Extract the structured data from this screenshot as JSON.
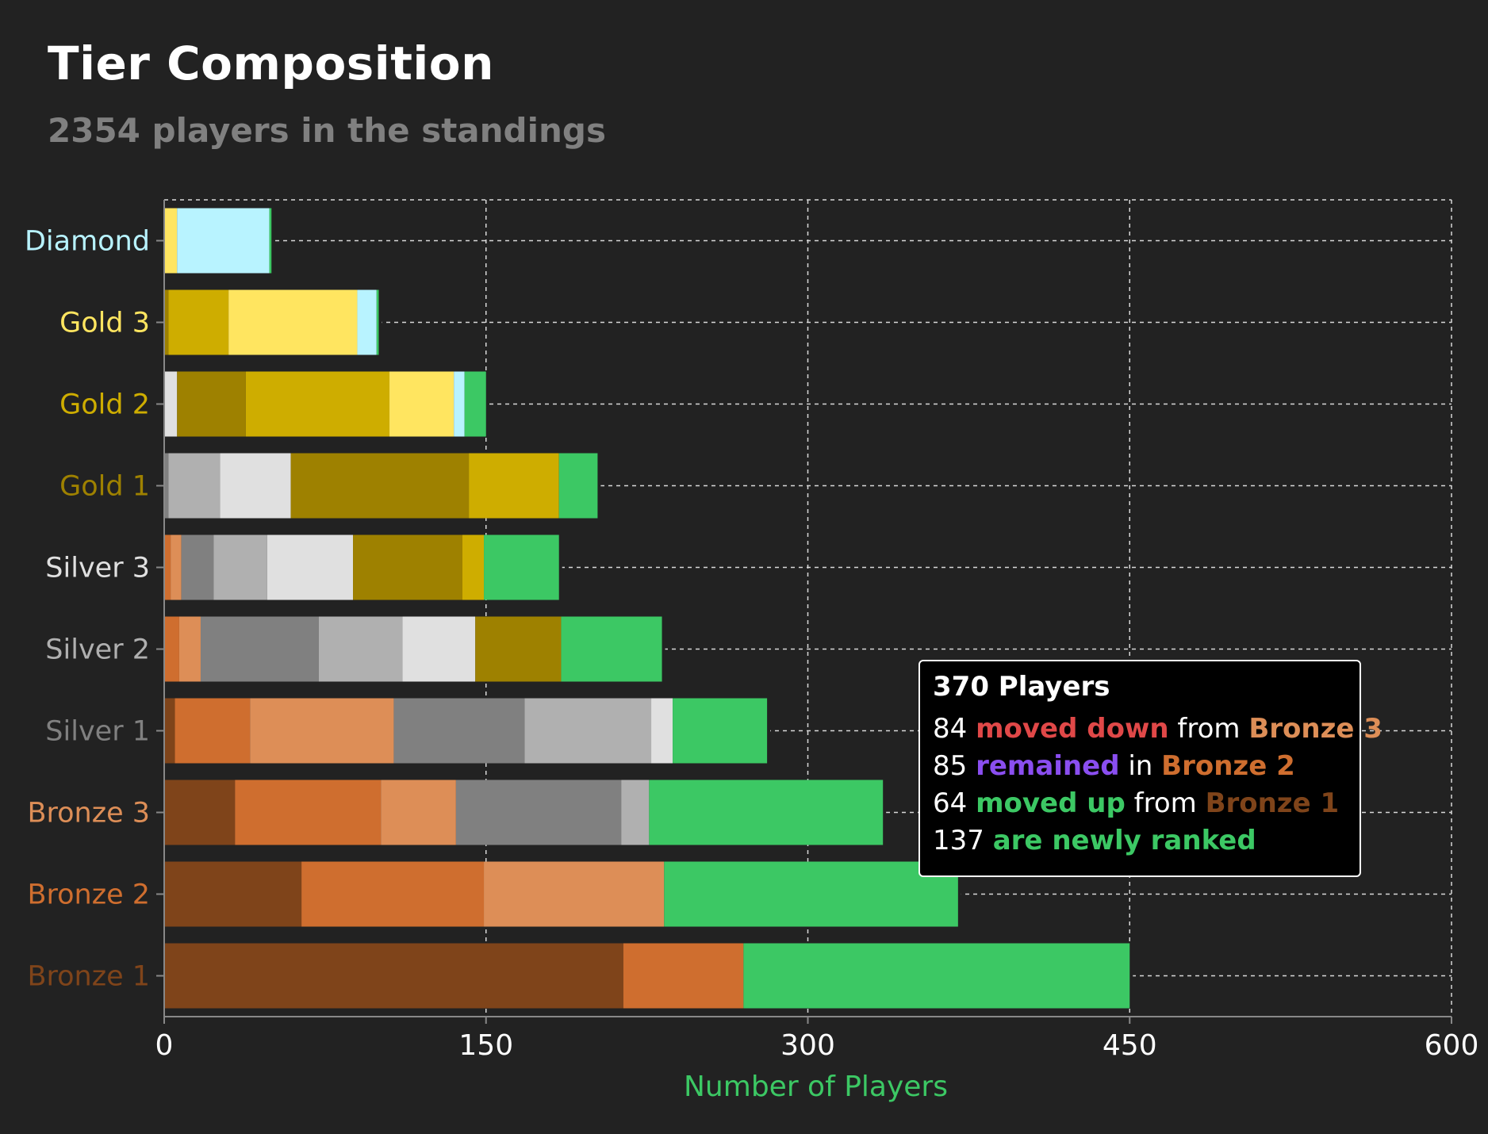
{
  "page": {
    "title": "Tier Composition",
    "subtitle": "2354 players in the standings"
  },
  "colors": {
    "background": "#222222",
    "grid": "#d8d8d8",
    "axis": "#888888",
    "new": "#3cc864",
    "bronze1": "#7f441a",
    "bronze2": "#cf6e2f",
    "bronze3": "#dd8e57",
    "silver1": "#808080",
    "silver2": "#b0b0b0",
    "silver3": "#e0e0e0",
    "gold1": "#9e8100",
    "gold2": "#cead00",
    "gold3": "#ffe560",
    "diamond": "#b8f3ff",
    "moved_down": "#e04848",
    "remained": "#8a4ef0",
    "moved_up": "#3cc864"
  },
  "tooltip": {
    "title": "370 Players",
    "line1": {
      "count": "84",
      "action": "moved down",
      "prep": "from",
      "tier": "Bronze 3"
    },
    "line2": {
      "count": "85",
      "action": "remained",
      "prep": "in",
      "tier": "Bronze 2"
    },
    "line3": {
      "count": "64",
      "action": "moved up",
      "prep": "from",
      "tier": "Bronze 1"
    },
    "line4": {
      "count": "137",
      "action": "are newly ranked"
    }
  },
  "chart_data": {
    "type": "bar",
    "orientation": "horizontal",
    "stacked": true,
    "xlabel": "Number of Players",
    "ylabel": "",
    "xlim": [
      0,
      600
    ],
    "xticks": [
      0,
      150,
      300,
      450,
      600
    ],
    "grid": true,
    "categories": [
      "Diamond",
      "Gold 3",
      "Gold 2",
      "Gold 1",
      "Silver 3",
      "Silver 2",
      "Silver 1",
      "Bronze 3",
      "Bronze 2",
      "Bronze 1"
    ],
    "category_colors": [
      "#b8f3ff",
      "#ffe560",
      "#cead00",
      "#9e8100",
      "#e0e0e0",
      "#b0b0b0",
      "#808080",
      "#dd8e57",
      "#cf6e2f",
      "#7f441a"
    ],
    "segment_groups": [
      "Bronze 1",
      "Bronze 2",
      "Bronze 3",
      "Silver 1",
      "Silver 2",
      "Silver 3",
      "Gold 1",
      "Gold 2",
      "Gold 3",
      "Diamond",
      "New"
    ],
    "bars": [
      {
        "category": "Diamond",
        "segments": [
          {
            "source": "Gold 3",
            "value": 6
          },
          {
            "source": "Diamond",
            "value": 43
          },
          {
            "source": "New",
            "value": 1
          }
        ]
      },
      {
        "category": "Gold 3",
        "segments": [
          {
            "source": "Gold 1",
            "value": 2
          },
          {
            "source": "Gold 2",
            "value": 28
          },
          {
            "source": "Gold 3",
            "value": 60
          },
          {
            "source": "Diamond",
            "value": 9
          },
          {
            "source": "New",
            "value": 1
          }
        ]
      },
      {
        "category": "Gold 2",
        "segments": [
          {
            "source": "Silver 3",
            "value": 6
          },
          {
            "source": "Gold 1",
            "value": 32
          },
          {
            "source": "Gold 2",
            "value": 67
          },
          {
            "source": "Gold 3",
            "value": 30
          },
          {
            "source": "Diamond",
            "value": 5
          },
          {
            "source": "New",
            "value": 10
          }
        ]
      },
      {
        "category": "Gold 1",
        "segments": [
          {
            "source": "Silver 1",
            "value": 2
          },
          {
            "source": "Silver 2",
            "value": 24
          },
          {
            "source": "Silver 3",
            "value": 33
          },
          {
            "source": "Gold 1",
            "value": 83
          },
          {
            "source": "Gold 2",
            "value": 42
          },
          {
            "source": "New",
            "value": 18
          }
        ]
      },
      {
        "category": "Silver 3",
        "segments": [
          {
            "source": "Bronze 2",
            "value": 3
          },
          {
            "source": "Bronze 3",
            "value": 5
          },
          {
            "source": "Silver 1",
            "value": 15
          },
          {
            "source": "Silver 2",
            "value": 25
          },
          {
            "source": "Silver 3",
            "value": 40
          },
          {
            "source": "Gold 1",
            "value": 51
          },
          {
            "source": "Gold 2",
            "value": 10
          },
          {
            "source": "New",
            "value": 35
          }
        ]
      },
      {
        "category": "Silver 2",
        "segments": [
          {
            "source": "Bronze 2",
            "value": 7
          },
          {
            "source": "Bronze 3",
            "value": 10
          },
          {
            "source": "Silver 1",
            "value": 55
          },
          {
            "source": "Silver 2",
            "value": 39
          },
          {
            "source": "Silver 3",
            "value": 34
          },
          {
            "source": "Gold 1",
            "value": 40
          },
          {
            "source": "New",
            "value": 47
          }
        ]
      },
      {
        "category": "Silver 1",
        "segments": [
          {
            "source": "Bronze 1",
            "value": 5
          },
          {
            "source": "Bronze 2",
            "value": 35
          },
          {
            "source": "Bronze 3",
            "value": 67
          },
          {
            "source": "Silver 1",
            "value": 61
          },
          {
            "source": "Silver 2",
            "value": 59
          },
          {
            "source": "Silver 3",
            "value": 10
          },
          {
            "source": "New",
            "value": 44
          }
        ]
      },
      {
        "category": "Bronze 3",
        "segments": [
          {
            "source": "Bronze 1",
            "value": 33
          },
          {
            "source": "Bronze 2",
            "value": 68
          },
          {
            "source": "Bronze 3",
            "value": 35
          },
          {
            "source": "Silver 1",
            "value": 77
          },
          {
            "source": "Silver 2",
            "value": 13
          },
          {
            "source": "New",
            "value": 109
          }
        ]
      },
      {
        "category": "Bronze 2",
        "segments": [
          {
            "source": "Bronze 1",
            "value": 64
          },
          {
            "source": "Bronze 2",
            "value": 85
          },
          {
            "source": "Bronze 3",
            "value": 84
          },
          {
            "source": "New",
            "value": 137
          }
        ]
      },
      {
        "category": "Bronze 1",
        "segments": [
          {
            "source": "Bronze 1",
            "value": 214
          },
          {
            "source": "Bronze 2",
            "value": 56
          },
          {
            "source": "New",
            "value": 180
          }
        ]
      }
    ]
  }
}
